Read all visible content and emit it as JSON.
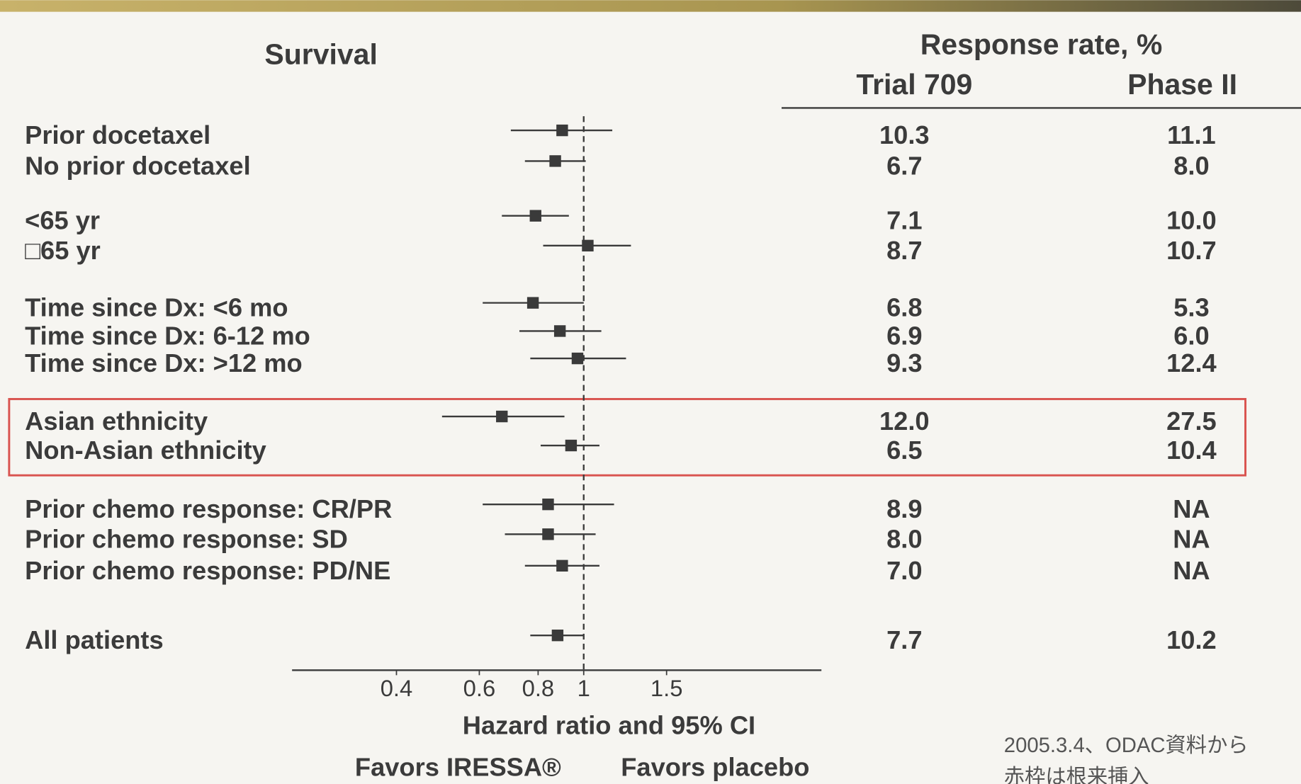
{
  "chart_data": {
    "type": "forest",
    "title": "Survival",
    "categories": [
      "Prior docetaxel",
      "No prior docetaxel",
      "<65 yr",
      "□65 yr",
      "Time since Dx: <6 mo",
      "Time since Dx: 6-12 mo",
      "Time since Dx: >12 mo",
      "Asian ethnicity",
      "Non-Asian ethnicity",
      "Prior chemo response: CR/PR",
      "Prior chemo response: SD",
      "Prior chemo response: PD/NE",
      "All patients"
    ],
    "values": [
      0.9,
      0.87,
      0.79,
      1.02,
      0.78,
      0.89,
      0.97,
      0.67,
      0.94,
      0.84,
      0.84,
      0.9,
      0.88
    ],
    "ci_low": [
      0.7,
      0.75,
      0.67,
      0.82,
      0.61,
      0.73,
      0.77,
      0.5,
      0.81,
      0.61,
      0.68,
      0.75,
      0.77
    ],
    "ci_high": [
      1.15,
      1.01,
      0.93,
      1.26,
      1.0,
      1.09,
      1.23,
      0.91,
      1.08,
      1.16,
      1.06,
      1.08,
      1.0
    ],
    "color": "#3a3a3a",
    "xscale": "log",
    "xlim": [
      0.24,
      3.2
    ],
    "xticks": [
      0.4,
      0.6,
      0.8,
      1,
      1.5
    ],
    "ref_line": 1,
    "xlabel": "Hazard ratio and 95% CI",
    "favors_left": "Favors IRESSA®",
    "favors_right": "Favors placebo",
    "table": {
      "title": "Response rate, %",
      "columns": [
        "Trial 709",
        "Phase II"
      ],
      "rows": [
        [
          "10.3",
          "11.1"
        ],
        [
          "6.7",
          "8.0"
        ],
        [
          "7.1",
          "10.0"
        ],
        [
          "8.7",
          "10.7"
        ],
        [
          "6.8",
          "5.3"
        ],
        [
          "6.9",
          "6.0"
        ],
        [
          "9.3",
          "12.4"
        ],
        [
          "12.0",
          "27.5"
        ],
        [
          "6.5",
          "10.4"
        ],
        [
          "8.9",
          "NA"
        ],
        [
          "8.0",
          "NA"
        ],
        [
          "7.0",
          "NA"
        ],
        [
          "7.7",
          "10.2"
        ]
      ]
    },
    "annotations": [
      "2005.3.4、ODAC資料から",
      "赤枠は根来挿入"
    ]
  }
}
